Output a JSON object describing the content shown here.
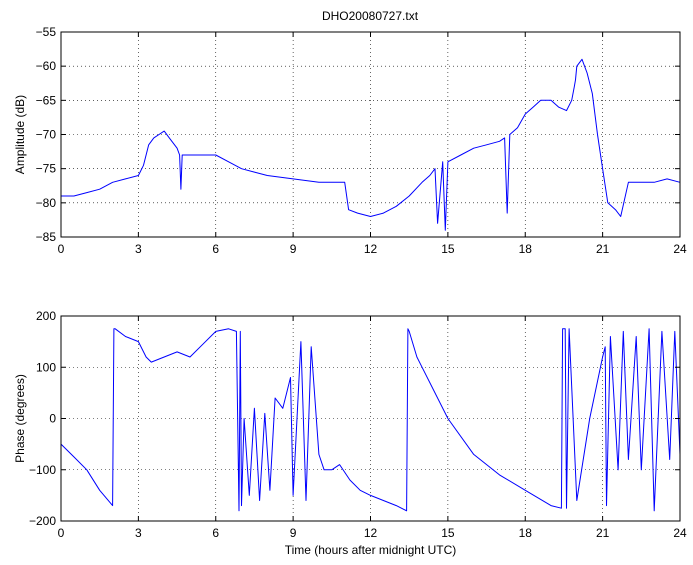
{
  "figure": {
    "title": "DHO20080727.txt",
    "line_color": "#0000ff",
    "grid_style": "dotted",
    "background": "#ffffff"
  },
  "chart_data": [
    {
      "type": "line",
      "title": "DHO20080727.txt",
      "xlabel": "",
      "ylabel": "Amplitude (dB)",
      "xlim": [
        0,
        24
      ],
      "ylim": [
        -85,
        -55
      ],
      "xticks": [
        0,
        3,
        6,
        9,
        12,
        15,
        18,
        21,
        24
      ],
      "yticks": [
        -85,
        -80,
        -75,
        -70,
        -65,
        -60,
        -55
      ],
      "xtick_labels": [
        "0",
        "3",
        "6",
        "9",
        "12",
        "15",
        "18",
        "21",
        "24"
      ],
      "ytick_labels": [
        "−85",
        "−80",
        "−75",
        "−70",
        "−65",
        "−60",
        "−55"
      ],
      "grid": true,
      "series": [
        {
          "color": "#0000ff",
          "x": [
            0,
            0.5,
            1,
            1.5,
            2,
            2.5,
            3,
            3.2,
            3.4,
            3.6,
            3.8,
            4.0,
            4.2,
            4.5,
            4.6,
            4.65,
            4.7,
            5,
            5.5,
            6,
            6.5,
            7,
            7.5,
            8,
            9,
            10,
            11,
            11.15,
            11.5,
            12,
            12.5,
            13,
            13.5,
            14,
            14.3,
            14.5,
            14.6,
            14.8,
            14.9,
            15,
            15.5,
            16,
            16.5,
            17,
            17.2,
            17.3,
            17.4,
            17.7,
            18,
            18.3,
            18.6,
            19,
            19.3,
            19.6,
            19.8,
            19.9,
            19.95,
            20.0,
            20.2,
            20.4,
            20.6,
            20.8,
            21,
            21.2,
            21.5,
            21.7,
            22,
            22.5,
            23,
            23.5,
            24
          ],
          "y": [
            -79,
            -79,
            -78.5,
            -78,
            -77,
            -76.5,
            -76,
            -74.5,
            -71.5,
            -70.5,
            -70,
            -69.5,
            -70.5,
            -72,
            -73,
            -78,
            -73,
            -73,
            -73,
            -73,
            -74,
            -75,
            -75.5,
            -76,
            -76.5,
            -77,
            -77,
            -81,
            -81.5,
            -82,
            -81.5,
            -80.5,
            -79,
            -77,
            -76,
            -75,
            -83,
            -74,
            -84,
            -74,
            -73,
            -72,
            -71.5,
            -71,
            -70.5,
            -81.5,
            -70,
            -69,
            -67,
            -66,
            -65,
            -65,
            -66,
            -66.5,
            -65,
            -63,
            -62,
            -60,
            -59,
            -61,
            -64,
            -70,
            -75,
            -80,
            -81,
            -82,
            -77,
            -77,
            -77,
            -76.5,
            -77
          ]
        }
      ]
    },
    {
      "type": "line",
      "title": "",
      "xlabel": "Time (hours after midnight UTC)",
      "ylabel": "Phase (degrees)",
      "xlim": [
        0,
        24
      ],
      "ylim": [
        -200,
        200
      ],
      "xticks": [
        0,
        3,
        6,
        9,
        12,
        15,
        18,
        21,
        24
      ],
      "yticks": [
        -200,
        -100,
        0,
        100,
        200
      ],
      "xtick_labels": [
        "0",
        "3",
        "6",
        "9",
        "12",
        "15",
        "18",
        "21",
        "24"
      ],
      "ytick_labels": [
        "−200",
        "−100",
        "0",
        "100",
        "200"
      ],
      "grid": true,
      "series": [
        {
          "color": "#0000ff",
          "x": [
            0,
            0.5,
            1,
            1.5,
            2,
            2.05,
            2.1,
            2.5,
            3,
            3.3,
            3.5,
            4,
            4.5,
            5,
            5.5,
            6,
            6.5,
            6.8,
            6.9,
            6.95,
            7.0,
            7.1,
            7.3,
            7.5,
            7.7,
            7.9,
            8.1,
            8.3,
            8.6,
            8.9,
            9.0,
            9.3,
            9.5,
            9.7,
            10.0,
            10.2,
            10.5,
            10.8,
            11.2,
            11.6,
            12,
            12.5,
            13,
            13.4,
            13.45,
            13.5,
            13.8,
            14,
            15,
            16,
            17,
            18,
            19,
            19.4,
            19.45,
            19.55,
            19.6,
            19.7,
            20,
            20.5,
            21,
            21.1,
            21.15,
            21.3,
            21.6,
            21.8,
            22,
            22.3,
            22.5,
            22.8,
            23,
            23.3,
            23.6,
            23.8,
            24
          ],
          "y": [
            -50,
            -75,
            -100,
            -140,
            -170,
            175,
            175,
            160,
            150,
            120,
            110,
            120,
            130,
            120,
            145,
            170,
            175,
            170,
            -180,
            170,
            -170,
            0,
            -150,
            20,
            -160,
            10,
            -140,
            40,
            20,
            80,
            -150,
            150,
            -160,
            140,
            -70,
            -100,
            -100,
            -90,
            -120,
            -140,
            -150,
            -160,
            -170,
            -180,
            175,
            170,
            120,
            100,
            0,
            -70,
            -110,
            -140,
            -170,
            -175,
            175,
            175,
            -175,
            175,
            -160,
            0,
            120,
            140,
            -170,
            160,
            -100,
            170,
            -80,
            160,
            -100,
            175,
            -180,
            170,
            -80,
            170,
            -70
          ]
        }
      ]
    }
  ]
}
